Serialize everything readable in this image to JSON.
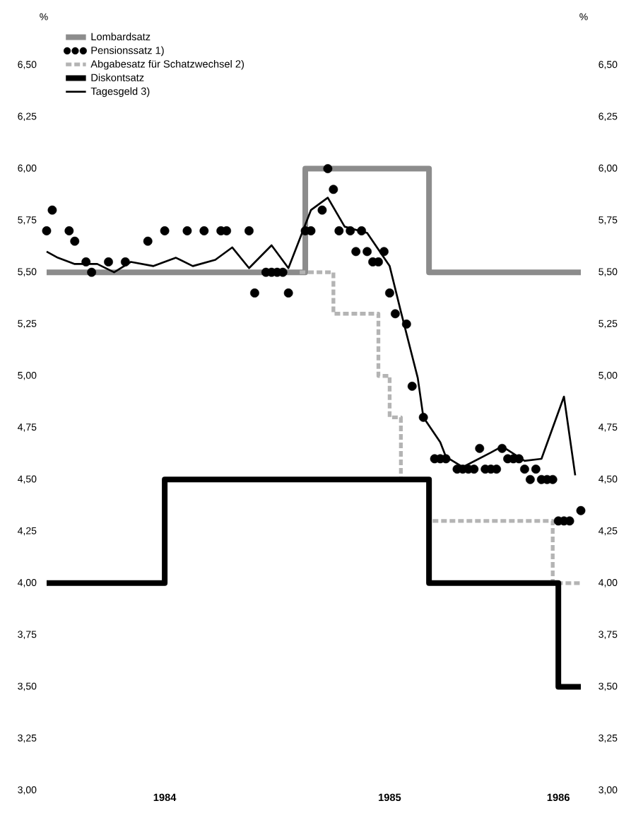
{
  "chart_data": {
    "type": "line",
    "ylabel": "%",
    "y2label": "%",
    "categories": [
      null,
      null,
      null,
      null,
      null,
      null,
      null,
      null,
      null,
      null,
      null,
      null,
      null,
      null,
      null,
      null,
      null,
      null,
      null,
      null,
      null,
      "1984",
      null,
      null,
      null,
      null,
      null,
      null,
      null,
      null,
      null,
      null,
      null,
      null,
      null,
      null,
      null,
      null,
      null,
      null,
      null,
      null,
      null,
      null,
      null,
      null,
      null,
      null,
      null,
      null,
      null,
      null,
      null,
      null,
      null,
      null,
      null,
      null,
      null,
      null,
      null,
      "1985",
      null,
      null,
      null,
      null,
      null,
      null,
      null,
      null,
      null,
      null,
      null,
      null,
      null,
      null,
      null,
      null,
      null,
      null,
      null,
      null,
      null,
      null,
      null,
      null,
      null,
      null,
      null,
      null,
      null,
      "1986",
      null,
      null,
      null,
      null
    ],
    "ylim": [
      3.0,
      6.5
    ],
    "yticks": [
      {
        "value": 3.0,
        "label": "3,00"
      },
      {
        "value": 3.25,
        "label": "3,25"
      },
      {
        "value": 3.5,
        "label": "3,50"
      },
      {
        "value": 3.75,
        "label": "3,75"
      },
      {
        "value": 4.0,
        "label": "4,00"
      },
      {
        "value": 4.25,
        "label": "4,25"
      },
      {
        "value": 4.5,
        "label": "4,50"
      },
      {
        "value": 4.75,
        "label": "4,75"
      },
      {
        "value": 5.0,
        "label": "5,00"
      },
      {
        "value": 5.25,
        "label": "5,25"
      },
      {
        "value": 5.5,
        "label": "5,50"
      },
      {
        "value": 5.75,
        "label": "5,75"
      },
      {
        "value": 6.0,
        "label": "6,00"
      },
      {
        "value": 6.25,
        "label": "6,25"
      },
      {
        "value": 6.5,
        "label": "6,50"
      }
    ],
    "y2lim": [
      3.0,
      6.5
    ],
    "y2ticks": [
      {
        "value": 3.0,
        "label": "3,00"
      },
      {
        "value": 3.25,
        "label": "3,25"
      },
      {
        "value": 3.5,
        "label": "3,50"
      },
      {
        "value": 3.75,
        "label": "3,75"
      },
      {
        "value": 4.0,
        "label": "4,00"
      },
      {
        "value": 4.25,
        "label": "4,25"
      },
      {
        "value": 4.5,
        "label": "4,50"
      },
      {
        "value": 4.75,
        "label": "4,75"
      },
      {
        "value": 5.0,
        "label": "5,00"
      },
      {
        "value": 5.25,
        "label": "5,25"
      },
      {
        "value": 5.5,
        "label": "5,50"
      },
      {
        "value": 5.75,
        "label": "5,75"
      },
      {
        "value": 6.0,
        "label": "6,00"
      },
      {
        "value": 6.25,
        "label": "6,25"
      },
      {
        "value": 6.5,
        "label": "6,50"
      }
    ],
    "legend": "top left",
    "series": [
      {
        "name": "Lombardsatz",
        "type": "step",
        "color": "#8c8c8c",
        "values": [
          5.5,
          5.5,
          5.5,
          5.5,
          5.5,
          5.5,
          5.5,
          5.5,
          5.5,
          5.5,
          5.5,
          5.5,
          5.5,
          5.5,
          5.5,
          5.5,
          5.5,
          5.5,
          5.5,
          5.5,
          5.5,
          5.5,
          5.5,
          5.5,
          5.5,
          5.5,
          5.5,
          5.5,
          5.5,
          5.5,
          5.5,
          5.5,
          5.5,
          5.5,
          5.5,
          5.5,
          5.5,
          5.5,
          5.5,
          5.5,
          5.5,
          5.5,
          5.5,
          5.5,
          5.5,
          5.5,
          6.0,
          6.0,
          6.0,
          6.0,
          6.0,
          6.0,
          6.0,
          6.0,
          6.0,
          6.0,
          6.0,
          6.0,
          6.0,
          6.0,
          6.0,
          6.0,
          6.0,
          6.0,
          6.0,
          6.0,
          6.0,
          6.0,
          5.5,
          5.5,
          5.5,
          5.5,
          5.5,
          5.5,
          5.5,
          5.5,
          5.5,
          5.5,
          5.5,
          5.5,
          5.5,
          5.5,
          5.5,
          5.5,
          5.5,
          5.5,
          5.5,
          5.5,
          5.5,
          5.5,
          5.5,
          5.5,
          5.5,
          5.5,
          5.5,
          5.5
        ]
      },
      {
        "name": "Pensionssatz 1)",
        "type": "scatter",
        "marker": "circle",
        "color": "#000000",
        "values": [
          5.7,
          5.8,
          null,
          null,
          5.7,
          5.65,
          null,
          5.55,
          5.5,
          null,
          null,
          5.55,
          null,
          null,
          5.55,
          null,
          null,
          null,
          5.65,
          null,
          null,
          5.7,
          null,
          null,
          null,
          5.7,
          null,
          null,
          5.7,
          null,
          null,
          5.7,
          5.7,
          null,
          null,
          null,
          5.7,
          5.4,
          null,
          5.5,
          5.5,
          5.5,
          5.5,
          5.4,
          null,
          null,
          5.7,
          5.7,
          null,
          5.8,
          6.0,
          5.9,
          5.7,
          null,
          5.7,
          5.6,
          5.7,
          5.6,
          5.55,
          5.55,
          5.6,
          5.4,
          5.3,
          null,
          5.25,
          4.95,
          null,
          4.8,
          null,
          4.6,
          4.6,
          4.6,
          null,
          4.55,
          4.55,
          4.55,
          4.55,
          4.65,
          4.55,
          4.55,
          4.55,
          4.65,
          4.6,
          4.6,
          4.6,
          4.55,
          4.5,
          4.55,
          4.5,
          4.5,
          4.5,
          4.3,
          4.3,
          4.3,
          null,
          4.35
        ]
      },
      {
        "name": "Abgabesatz für Schatzwechsel 2)",
        "type": "step",
        "line_style": "dashed",
        "color": "#b4b4b4",
        "values": [
          null,
          null,
          null,
          null,
          null,
          null,
          null,
          null,
          null,
          null,
          null,
          null,
          null,
          null,
          null,
          null,
          null,
          null,
          null,
          null,
          null,
          null,
          null,
          null,
          null,
          null,
          null,
          null,
          null,
          null,
          null,
          null,
          null,
          null,
          null,
          null,
          null,
          null,
          null,
          null,
          null,
          null,
          null,
          null,
          null,
          5.5,
          5.5,
          5.5,
          5.5,
          5.5,
          5.5,
          5.3,
          5.3,
          5.3,
          5.3,
          5.3,
          5.3,
          5.3,
          5.3,
          5.0,
          5.0,
          4.8,
          4.8,
          4.5,
          4.5,
          4.5,
          4.5,
          4.5,
          4.3,
          4.3,
          4.3,
          4.3,
          4.3,
          4.3,
          4.3,
          4.3,
          4.3,
          4.3,
          4.3,
          4.3,
          4.3,
          4.3,
          4.3,
          4.3,
          4.3,
          4.3,
          4.3,
          4.3,
          4.3,
          4.3,
          4.0,
          4.0,
          4.0,
          4.0,
          4.0,
          4.0
        ]
      },
      {
        "name": "Diskontsatz",
        "type": "step",
        "color": "#000000",
        "values": [
          4.0,
          4.0,
          4.0,
          4.0,
          4.0,
          4.0,
          4.0,
          4.0,
          4.0,
          4.0,
          4.0,
          4.0,
          4.0,
          4.0,
          4.0,
          4.0,
          4.0,
          4.0,
          4.0,
          4.0,
          4.0,
          4.5,
          4.5,
          4.5,
          4.5,
          4.5,
          4.5,
          4.5,
          4.5,
          4.5,
          4.5,
          4.5,
          4.5,
          4.5,
          4.5,
          4.5,
          4.5,
          4.5,
          4.5,
          4.5,
          4.5,
          4.5,
          4.5,
          4.5,
          4.5,
          4.5,
          4.5,
          4.5,
          4.5,
          4.5,
          4.5,
          4.5,
          4.5,
          4.5,
          4.5,
          4.5,
          4.5,
          4.5,
          4.5,
          4.5,
          4.5,
          4.5,
          4.5,
          4.5,
          4.5,
          4.5,
          4.5,
          4.5,
          4.0,
          4.0,
          4.0,
          4.0,
          4.0,
          4.0,
          4.0,
          4.0,
          4.0,
          4.0,
          4.0,
          4.0,
          4.0,
          4.0,
          4.0,
          4.0,
          4.0,
          4.0,
          4.0,
          4.0,
          4.0,
          4.0,
          4.0,
          3.5,
          3.5,
          3.5,
          3.5,
          3.5
        ]
      },
      {
        "name": "Tagesgeld 3)",
        "color": "#000000",
        "values": [
          5.6,
          null,
          5.57,
          null,
          null,
          5.54,
          null,
          null,
          null,
          5.54,
          null,
          null,
          5.5,
          null,
          null,
          5.55,
          null,
          null,
          null,
          5.53,
          null,
          null,
          null,
          5.57,
          null,
          null,
          5.53,
          null,
          null,
          null,
          5.56,
          null,
          null,
          5.62,
          null,
          null,
          5.52,
          null,
          null,
          null,
          5.63,
          null,
          null,
          5.52,
          null,
          5.66,
          null,
          5.8,
          null,
          null,
          5.86,
          null,
          null,
          5.72,
          null,
          null,
          null,
          5.69,
          null,
          null,
          null,
          5.53,
          null,
          5.31,
          null,
          null,
          4.99,
          4.8,
          null,
          null,
          4.68,
          4.61,
          null,
          null,
          4.56,
          null,
          null,
          null,
          null,
          4.63,
          null,
          4.66,
          null,
          null,
          null,
          4.59,
          null,
          null,
          4.6,
          null,
          null,
          null,
          4.9,
          null,
          4.52,
          null
        ]
      }
    ]
  }
}
